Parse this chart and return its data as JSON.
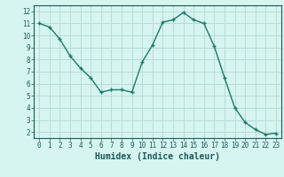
{
  "x": [
    0,
    1,
    2,
    3,
    4,
    5,
    6,
    7,
    8,
    9,
    10,
    11,
    12,
    13,
    14,
    15,
    16,
    17,
    18,
    19,
    20,
    21,
    22,
    23
  ],
  "y": [
    11.0,
    10.7,
    9.7,
    8.3,
    7.3,
    6.5,
    5.3,
    5.5,
    5.5,
    5.3,
    7.8,
    9.2,
    11.1,
    11.3,
    11.9,
    11.3,
    11.0,
    9.1,
    6.5,
    4.0,
    2.8,
    2.2,
    1.8,
    1.9
  ],
  "xlabel": "Humidex (Indice chaleur)",
  "line_color": "#1a7a6a",
  "bg_color": "#d6f5f0",
  "grid_color": "#b8dbd6",
  "tick_color": "#1a5a5a",
  "xlim": [
    -0.5,
    23.5
  ],
  "ylim": [
    1.5,
    12.5
  ],
  "yticks": [
    2,
    3,
    4,
    5,
    6,
    7,
    8,
    9,
    10,
    11,
    12
  ],
  "xticks": [
    0,
    1,
    2,
    3,
    4,
    5,
    6,
    7,
    8,
    9,
    10,
    11,
    12,
    13,
    14,
    15,
    16,
    17,
    18,
    19,
    20,
    21,
    22,
    23
  ],
  "tick_fontsize": 5.5,
  "xlabel_fontsize": 7.0
}
